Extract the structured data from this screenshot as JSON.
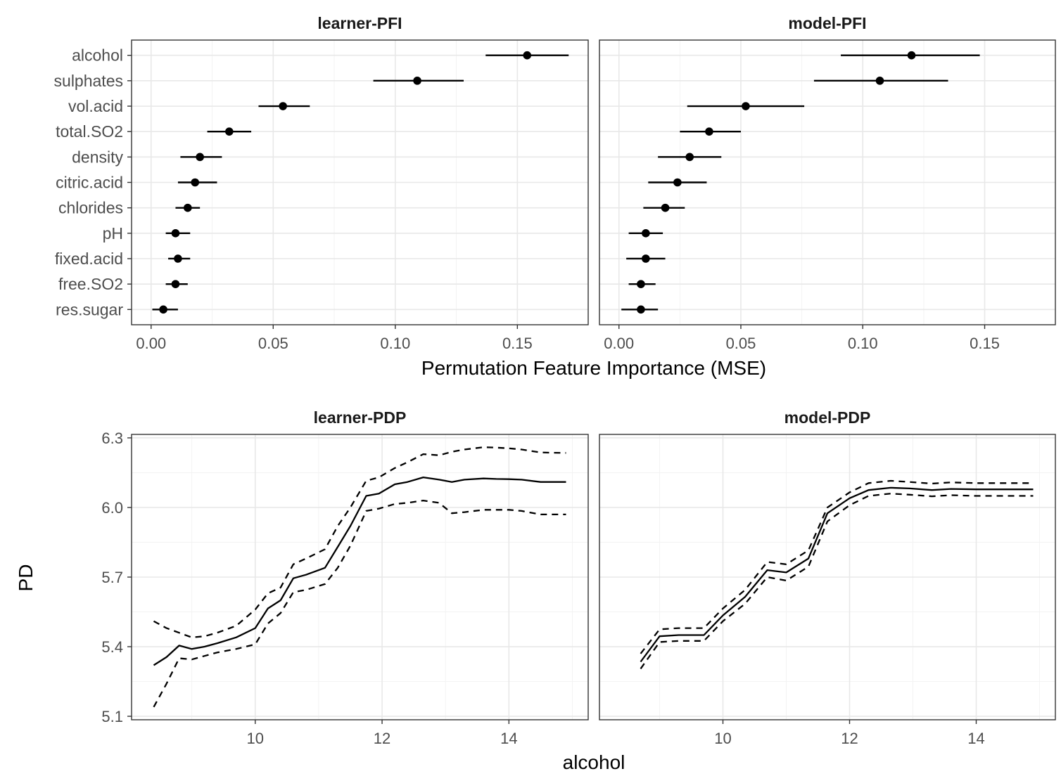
{
  "chart_data": [
    {
      "type": "errorbar",
      "panel": "learner-PFI",
      "title": "learner-PFI",
      "xlabel": "Permutation Feature Importance (MSE)",
      "xlim": [
        -0.008,
        0.179
      ],
      "xticks": [
        0.0,
        0.05,
        0.1,
        0.15
      ],
      "xtick_labels": [
        "0.00",
        "0.05",
        "0.10",
        "0.15"
      ],
      "categories": [
        "alcohol",
        "sulphates",
        "vol.acid",
        "total.SO2",
        "density",
        "citric.acid",
        "chlorides",
        "pH",
        "fixed.acid",
        "free.SO2",
        "res.sugar"
      ],
      "values": [
        0.154,
        0.109,
        0.054,
        0.032,
        0.02,
        0.018,
        0.015,
        0.01,
        0.011,
        0.01,
        0.005
      ],
      "lower": [
        0.137,
        0.091,
        0.044,
        0.023,
        0.012,
        0.011,
        0.01,
        0.006,
        0.007,
        0.006,
        0.0005
      ],
      "upper": [
        0.171,
        0.128,
        0.065,
        0.041,
        0.029,
        0.027,
        0.02,
        0.016,
        0.016,
        0.015,
        0.011
      ]
    },
    {
      "type": "errorbar",
      "panel": "model-PFI",
      "title": "model-PFI",
      "xlim": [
        -0.008,
        0.179
      ],
      "xticks": [
        0.0,
        0.05,
        0.1,
        0.15
      ],
      "xtick_labels": [
        "0.00",
        "0.05",
        "0.10",
        "0.15"
      ],
      "categories": [
        "alcohol",
        "sulphates",
        "vol.acid",
        "total.SO2",
        "density",
        "citric.acid",
        "chlorides",
        "pH",
        "fixed.acid",
        "free.SO2",
        "res.sugar"
      ],
      "values": [
        0.12,
        0.107,
        0.052,
        0.037,
        0.029,
        0.024,
        0.019,
        0.011,
        0.011,
        0.009,
        0.009
      ],
      "lower": [
        0.091,
        0.08,
        0.028,
        0.025,
        0.016,
        0.012,
        0.01,
        0.004,
        0.003,
        0.004,
        0.001
      ],
      "upper": [
        0.148,
        0.135,
        0.076,
        0.05,
        0.042,
        0.036,
        0.027,
        0.018,
        0.019,
        0.015,
        0.016
      ]
    },
    {
      "type": "line",
      "panel": "learner-PDP",
      "title": "learner-PDP",
      "xlabel": "alcohol",
      "ylabel": "PD",
      "xlim": [
        8.05,
        15.25
      ],
      "ylim": [
        5.085,
        6.315
      ],
      "xticks": [
        10,
        12,
        14
      ],
      "yticks": [
        5.1,
        5.4,
        5.7,
        6.0,
        6.3
      ],
      "ytick_labels": [
        "5.1",
        "5.4",
        "5.7",
        "6.0",
        "6.3"
      ],
      "x": [
        8.4,
        8.6,
        8.8,
        9.0,
        9.2,
        9.4,
        9.7,
        10.0,
        10.2,
        10.4,
        10.6,
        10.8,
        11.1,
        11.3,
        11.5,
        11.75,
        11.95,
        12.2,
        12.4,
        12.65,
        12.9,
        13.1,
        13.3,
        13.6,
        13.8,
        14.0,
        14.2,
        14.5,
        14.7,
        14.9
      ],
      "series": [
        {
          "name": "",
          "style": "solid",
          "values": [
            5.32,
            5.355,
            5.405,
            5.39,
            5.4,
            5.415,
            5.44,
            5.48,
            5.565,
            5.6,
            5.695,
            5.71,
            5.74,
            5.83,
            5.92,
            6.05,
            6.06,
            6.1,
            6.11,
            6.13,
            6.12,
            6.11,
            6.12,
            6.125,
            6.123,
            6.122,
            6.12,
            6.11,
            6.11,
            6.11
          ]
        },
        {
          "name": "",
          "style": "dashed",
          "values": [
            5.51,
            5.48,
            5.46,
            5.44,
            5.445,
            5.46,
            5.49,
            5.56,
            5.63,
            5.655,
            5.755,
            5.78,
            5.82,
            5.92,
            6.0,
            6.115,
            6.13,
            6.17,
            6.195,
            6.23,
            6.225,
            6.24,
            6.25,
            6.26,
            6.258,
            6.255,
            6.25,
            6.237,
            6.236,
            6.235
          ]
        },
        {
          "name": "",
          "style": "dashed",
          "values": [
            5.14,
            5.24,
            5.35,
            5.345,
            5.36,
            5.375,
            5.39,
            5.41,
            5.5,
            5.545,
            5.635,
            5.645,
            5.67,
            5.74,
            5.835,
            5.985,
            5.995,
            6.015,
            6.02,
            6.03,
            6.02,
            5.975,
            5.98,
            5.99,
            5.99,
            5.99,
            5.985,
            5.97,
            5.97,
            5.97
          ]
        }
      ]
    },
    {
      "type": "line",
      "panel": "model-PDP",
      "title": "model-PDP",
      "xlim": [
        8.05,
        15.25
      ],
      "ylim": [
        5.085,
        6.315
      ],
      "xticks": [
        10,
        12,
        14
      ],
      "x": [
        8.7,
        9.0,
        9.3,
        9.7,
        10.0,
        10.35,
        10.7,
        11.0,
        11.35,
        11.65,
        12.0,
        12.3,
        12.65,
        12.95,
        13.3,
        13.6,
        14.0,
        14.4,
        14.7,
        14.9
      ],
      "series": [
        {
          "name": "",
          "style": "solid",
          "values": [
            5.335,
            5.445,
            5.45,
            5.45,
            5.535,
            5.615,
            5.73,
            5.72,
            5.78,
            5.975,
            6.04,
            6.075,
            6.085,
            6.082,
            6.075,
            6.08,
            6.078,
            6.078,
            6.078,
            6.078
          ]
        },
        {
          "name": "",
          "style": "dashed",
          "values": [
            5.37,
            5.475,
            5.48,
            5.48,
            5.565,
            5.645,
            5.765,
            5.755,
            5.815,
            6.0,
            6.065,
            6.105,
            6.115,
            6.11,
            6.103,
            6.108,
            6.105,
            6.105,
            6.105,
            6.105
          ]
        },
        {
          "name": "",
          "style": "dashed",
          "values": [
            5.305,
            5.42,
            5.425,
            5.425,
            5.51,
            5.585,
            5.7,
            5.685,
            5.745,
            5.94,
            6.01,
            6.05,
            6.06,
            6.055,
            6.048,
            6.053,
            6.05,
            6.05,
            6.05,
            6.05
          ]
        }
      ]
    }
  ]
}
